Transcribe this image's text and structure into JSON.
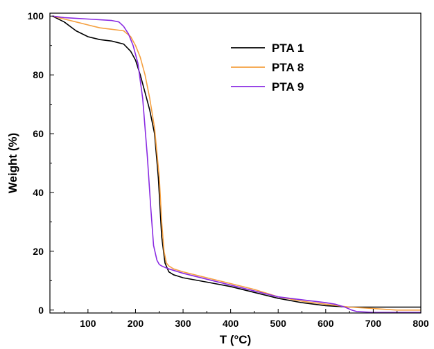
{
  "chart_data": {
    "type": "line",
    "title": "",
    "xlabel": "T (°C)",
    "ylabel": "Weight (%)",
    "xlim": [
      20,
      800
    ],
    "ylim": [
      -1,
      101
    ],
    "xticks": [
      100,
      200,
      300,
      400,
      500,
      600,
      700,
      800
    ],
    "yticks": [
      0,
      20,
      40,
      60,
      80,
      100
    ],
    "grid": false,
    "legend": "top-right",
    "series": [
      {
        "name": "PTA 1",
        "color": "#000000",
        "x": [
          25,
          50,
          75,
          100,
          125,
          150,
          175,
          190,
          200,
          210,
          220,
          230,
          240,
          248,
          255,
          262,
          270,
          280,
          300,
          350,
          400,
          450,
          500,
          550,
          600,
          650,
          700,
          750,
          800
        ],
        "y": [
          100,
          98,
          95,
          93,
          92,
          91.5,
          90.5,
          88,
          85,
          80,
          74,
          68,
          60,
          45,
          25,
          16,
          13,
          12,
          11,
          9.5,
          8,
          6,
          4,
          2.5,
          1.5,
          1,
          1,
          1,
          1
        ]
      },
      {
        "name": "PTA 8",
        "color": "#f5a040",
        "x": [
          25,
          50,
          75,
          100,
          125,
          150,
          175,
          190,
          200,
          210,
          220,
          230,
          240,
          250,
          255,
          260,
          265,
          270,
          280,
          300,
          350,
          400,
          450,
          500,
          550,
          600,
          650,
          700,
          750,
          800
        ],
        "y": [
          100,
          99,
          98,
          97,
          96,
          95.5,
          95,
          93,
          90,
          86,
          80,
          72,
          62,
          45,
          30,
          20,
          16,
          15,
          14,
          13,
          11,
          9,
          7,
          4.5,
          3,
          2,
          1,
          0.5,
          0,
          0
        ]
      },
      {
        "name": "PTA 9",
        "color": "#8a2be2",
        "x": [
          25,
          50,
          100,
          150,
          165,
          175,
          185,
          195,
          205,
          215,
          225,
          232,
          238,
          245,
          250,
          255,
          262,
          270,
          300,
          350,
          400,
          450,
          500,
          550,
          600,
          620,
          640,
          655,
          665,
          700,
          750,
          800
        ],
        "y": [
          100,
          99.5,
          99,
          98.5,
          98,
          96.5,
          94,
          90,
          84,
          72,
          52,
          35,
          22,
          17,
          15.5,
          15,
          14.5,
          14,
          12.5,
          10.5,
          8.5,
          6.5,
          4.5,
          3.5,
          2.5,
          2,
          1,
          0,
          -0.5,
          -0.8,
          -0.8,
          -0.8
        ]
      }
    ]
  }
}
